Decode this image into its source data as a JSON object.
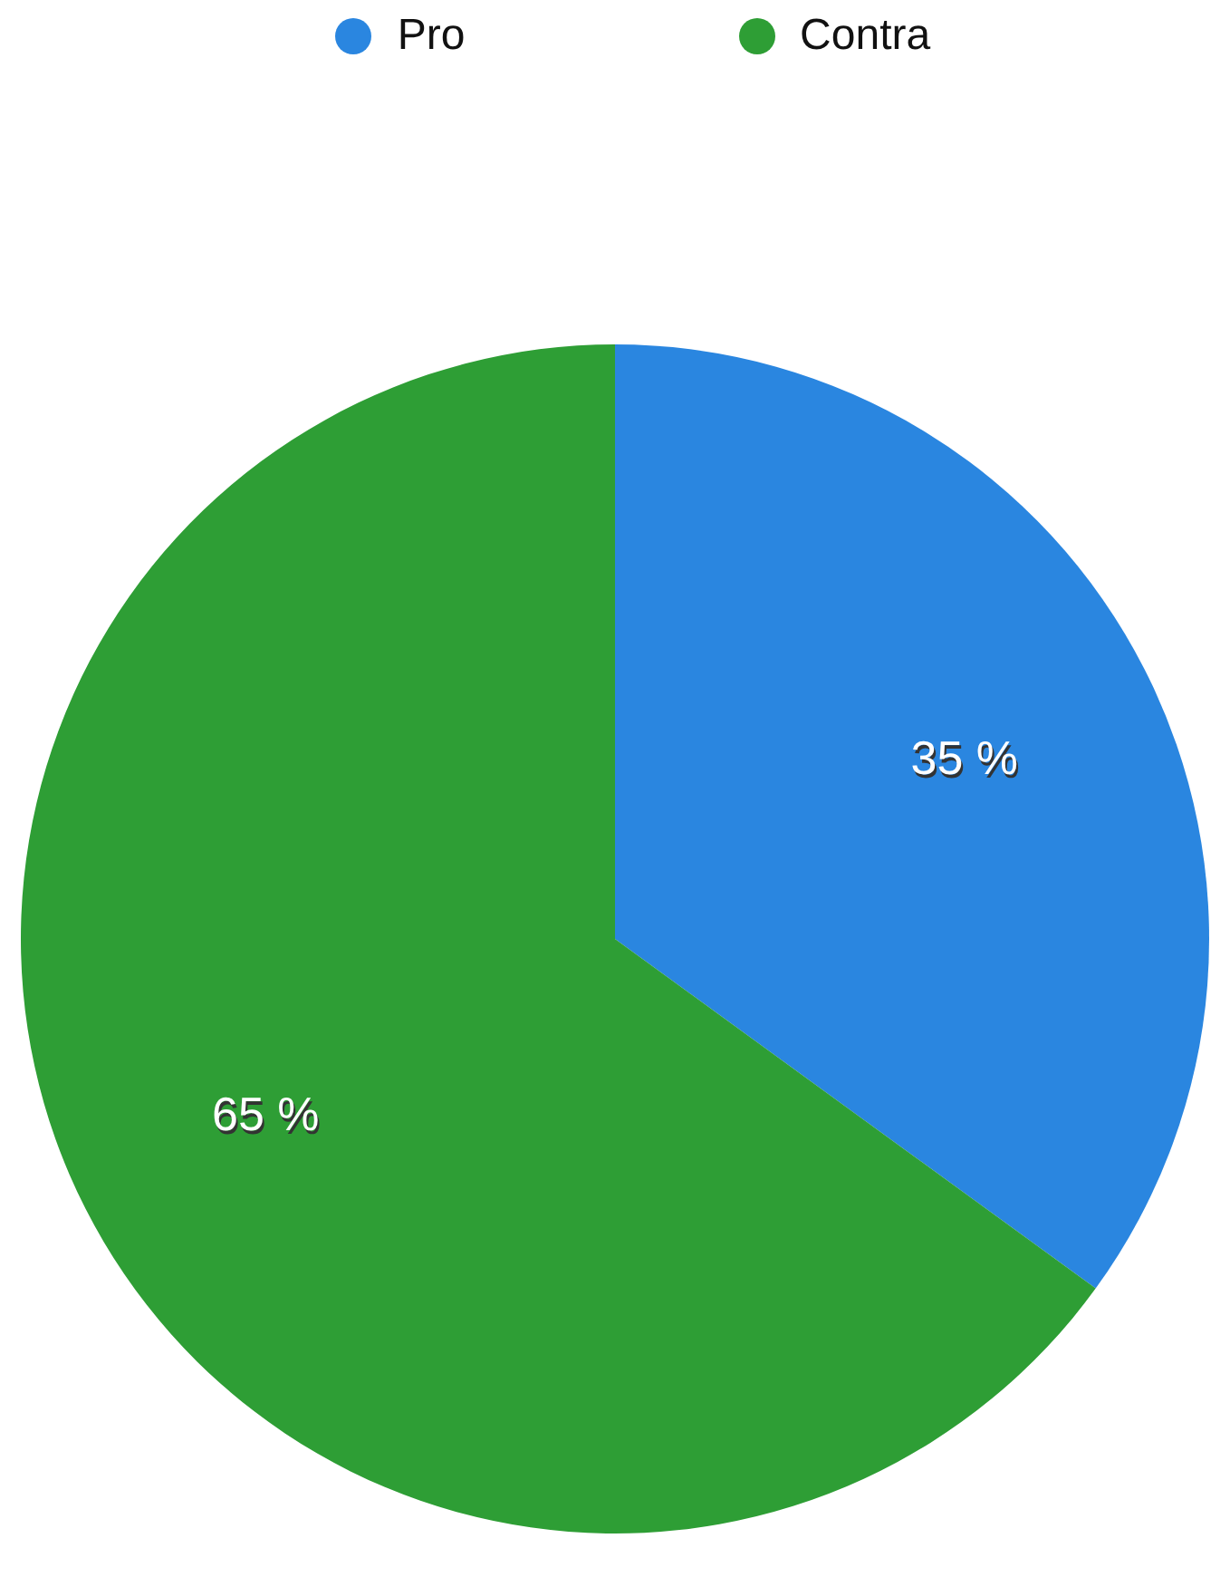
{
  "chart_data": {
    "type": "pie",
    "categories": [
      "Pro",
      "Contra"
    ],
    "values": [
      35,
      65
    ],
    "colors": [
      "#2a86e0",
      "#2e9e35"
    ],
    "value_labels": [
      "35 %",
      "65 %"
    ],
    "legend": "top"
  }
}
